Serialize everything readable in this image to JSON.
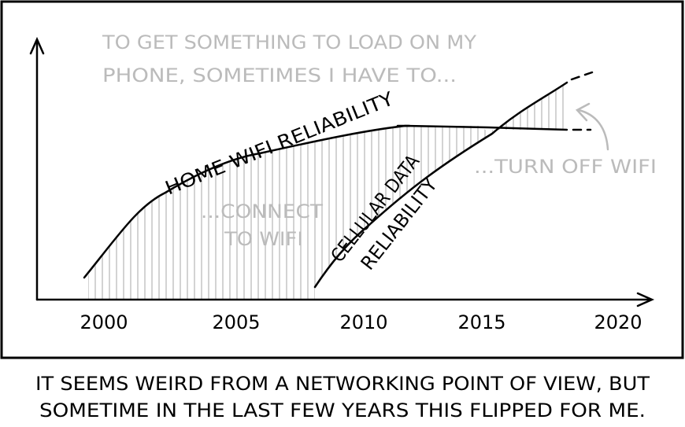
{
  "panel": {
    "intro": [
      "TO GET SOMETHING TO LOAD ON MY",
      "PHONE, SOMETIMES I HAVE TO..."
    ],
    "connect": [
      "...CONNECT",
      "TO WIFI"
    ],
    "turn_off": "...TURN OFF WIFI",
    "home_wifi": "HOME WIFI RELIABILITY",
    "cellular": [
      "CELLULAR DATA",
      "RELIABILITY"
    ],
    "x_labels": [
      "2000",
      "2005",
      "2010",
      "2015",
      "2020"
    ]
  },
  "caption": [
    "IT SEEMS WEIRD FROM A NETWORKING POINT OF VIEW, BUT",
    "SOMETIME IN THE LAST FEW YEARS THIS FLIPPED FOR ME."
  ]
}
